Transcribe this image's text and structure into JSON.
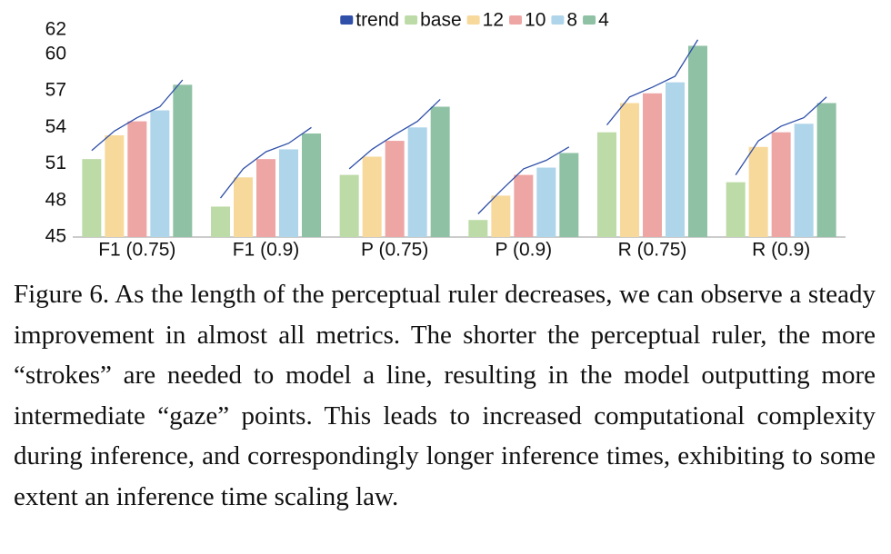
{
  "chart_data": {
    "type": "bar",
    "categories": [
      "F1 (0.75)",
      "F1 (0.9)",
      "P (0.75)",
      "P (0.9)",
      "R (0.75)",
      "R (0.9)"
    ],
    "series": [
      {
        "name": "trend",
        "color": "#2f4fa8",
        "type": "line",
        "values": [
          [
            52.1,
            53.7,
            54.8,
            55.7,
            57.9
          ],
          [
            48.2,
            50.6,
            52.0,
            52.7,
            54.0
          ],
          [
            50.6,
            52.2,
            53.4,
            54.5,
            56.3
          ],
          [
            46.9,
            48.8,
            50.6,
            51.3,
            52.4
          ],
          [
            54.2,
            56.5,
            57.3,
            58.2,
            61.2
          ],
          [
            50.1,
            52.9,
            54.1,
            54.8,
            56.5
          ]
        ]
      },
      {
        "name": "base",
        "color": "#bcdba6",
        "values": [
          51.4,
          47.5,
          50.1,
          46.4,
          53.6,
          49.5
        ]
      },
      {
        "name": "12",
        "color": "#f8d99c",
        "values": [
          53.35,
          49.9,
          51.6,
          48.4,
          56.0,
          52.4
        ]
      },
      {
        "name": "10",
        "color": "#eea6a5",
        "values": [
          54.5,
          51.4,
          52.9,
          50.1,
          56.8,
          53.6
        ]
      },
      {
        "name": "8",
        "color": "#afd5ea",
        "values": [
          55.4,
          52.2,
          54.0,
          50.7,
          57.7,
          54.3
        ]
      },
      {
        "name": "4",
        "color": "#8fc1a4",
        "values": [
          57.5,
          53.5,
          55.7,
          51.9,
          60.7,
          56.0
        ]
      }
    ],
    "ylim": [
      45,
      62
    ],
    "yticks": [
      45,
      48,
      51,
      54,
      57,
      60,
      62
    ],
    "grid": false,
    "legend": "top",
    "caption": "Figure 6. As the length of the perceptual ruler decreases, we can observe a steady improvement in almost all metrics. The shorter the perceptual ruler, the more “strokes” are needed to model a line, resulting in the model outputting more intermediate “gaze” points. This leads to increased computational complexity during inference, and correspondingly longer inference times, exhibiting to some extent an inference time scaling law."
  }
}
